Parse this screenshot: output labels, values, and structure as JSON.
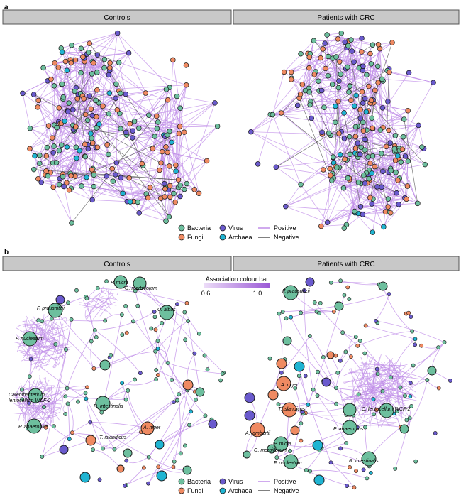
{
  "panel_a": {
    "label": "a",
    "headers": [
      "Controls",
      "Patients with CRC"
    ],
    "legend": {
      "bacteria": "Bacteria",
      "virus": "Virus",
      "fungi": "Fungi",
      "archaea": "Archaea",
      "positive": "Positive",
      "negative": "Negative"
    }
  },
  "panel_b": {
    "label": "b",
    "headers": [
      "Controls",
      "Patients with CRC"
    ],
    "colour_bar": {
      "title": "Association colour bar",
      "min": "0.6",
      "max": "1.0"
    },
    "controls_labels": [
      "P. micra",
      "G. morbillorum",
      "F. prausnitzii",
      "C. albus",
      "F. nucleatum",
      "Catenibacterium",
      "lentocellum WCF-2",
      "R. intestinalis",
      "P. anaerobius",
      "T. islandicus",
      "A. niger"
    ],
    "crc_labels": [
      "F. prausnitzii",
      "A. niger",
      "T. islandicus",
      "C. lentocellum WCF-2",
      "P. anaerobius",
      "A. lambertii",
      "P. micra",
      "G. morbillorum",
      "F. nucleatum",
      "R. intestinalis"
    ],
    "legend": {
      "bacteria": "Bacteria",
      "virus": "Virus",
      "fungi": "Fungi",
      "archaea": "Archaea",
      "positive": "Positive",
      "negative": "Negative"
    }
  },
  "colors": {
    "bacteria": "#6dbf9e",
    "fungi": "#ef8a62",
    "virus": "#6a5acd",
    "archaea": "#1fb4d2",
    "positive_edge": "#c08ee8",
    "negative_edge": "#555555",
    "header_bg": "#c8c8c8"
  }
}
